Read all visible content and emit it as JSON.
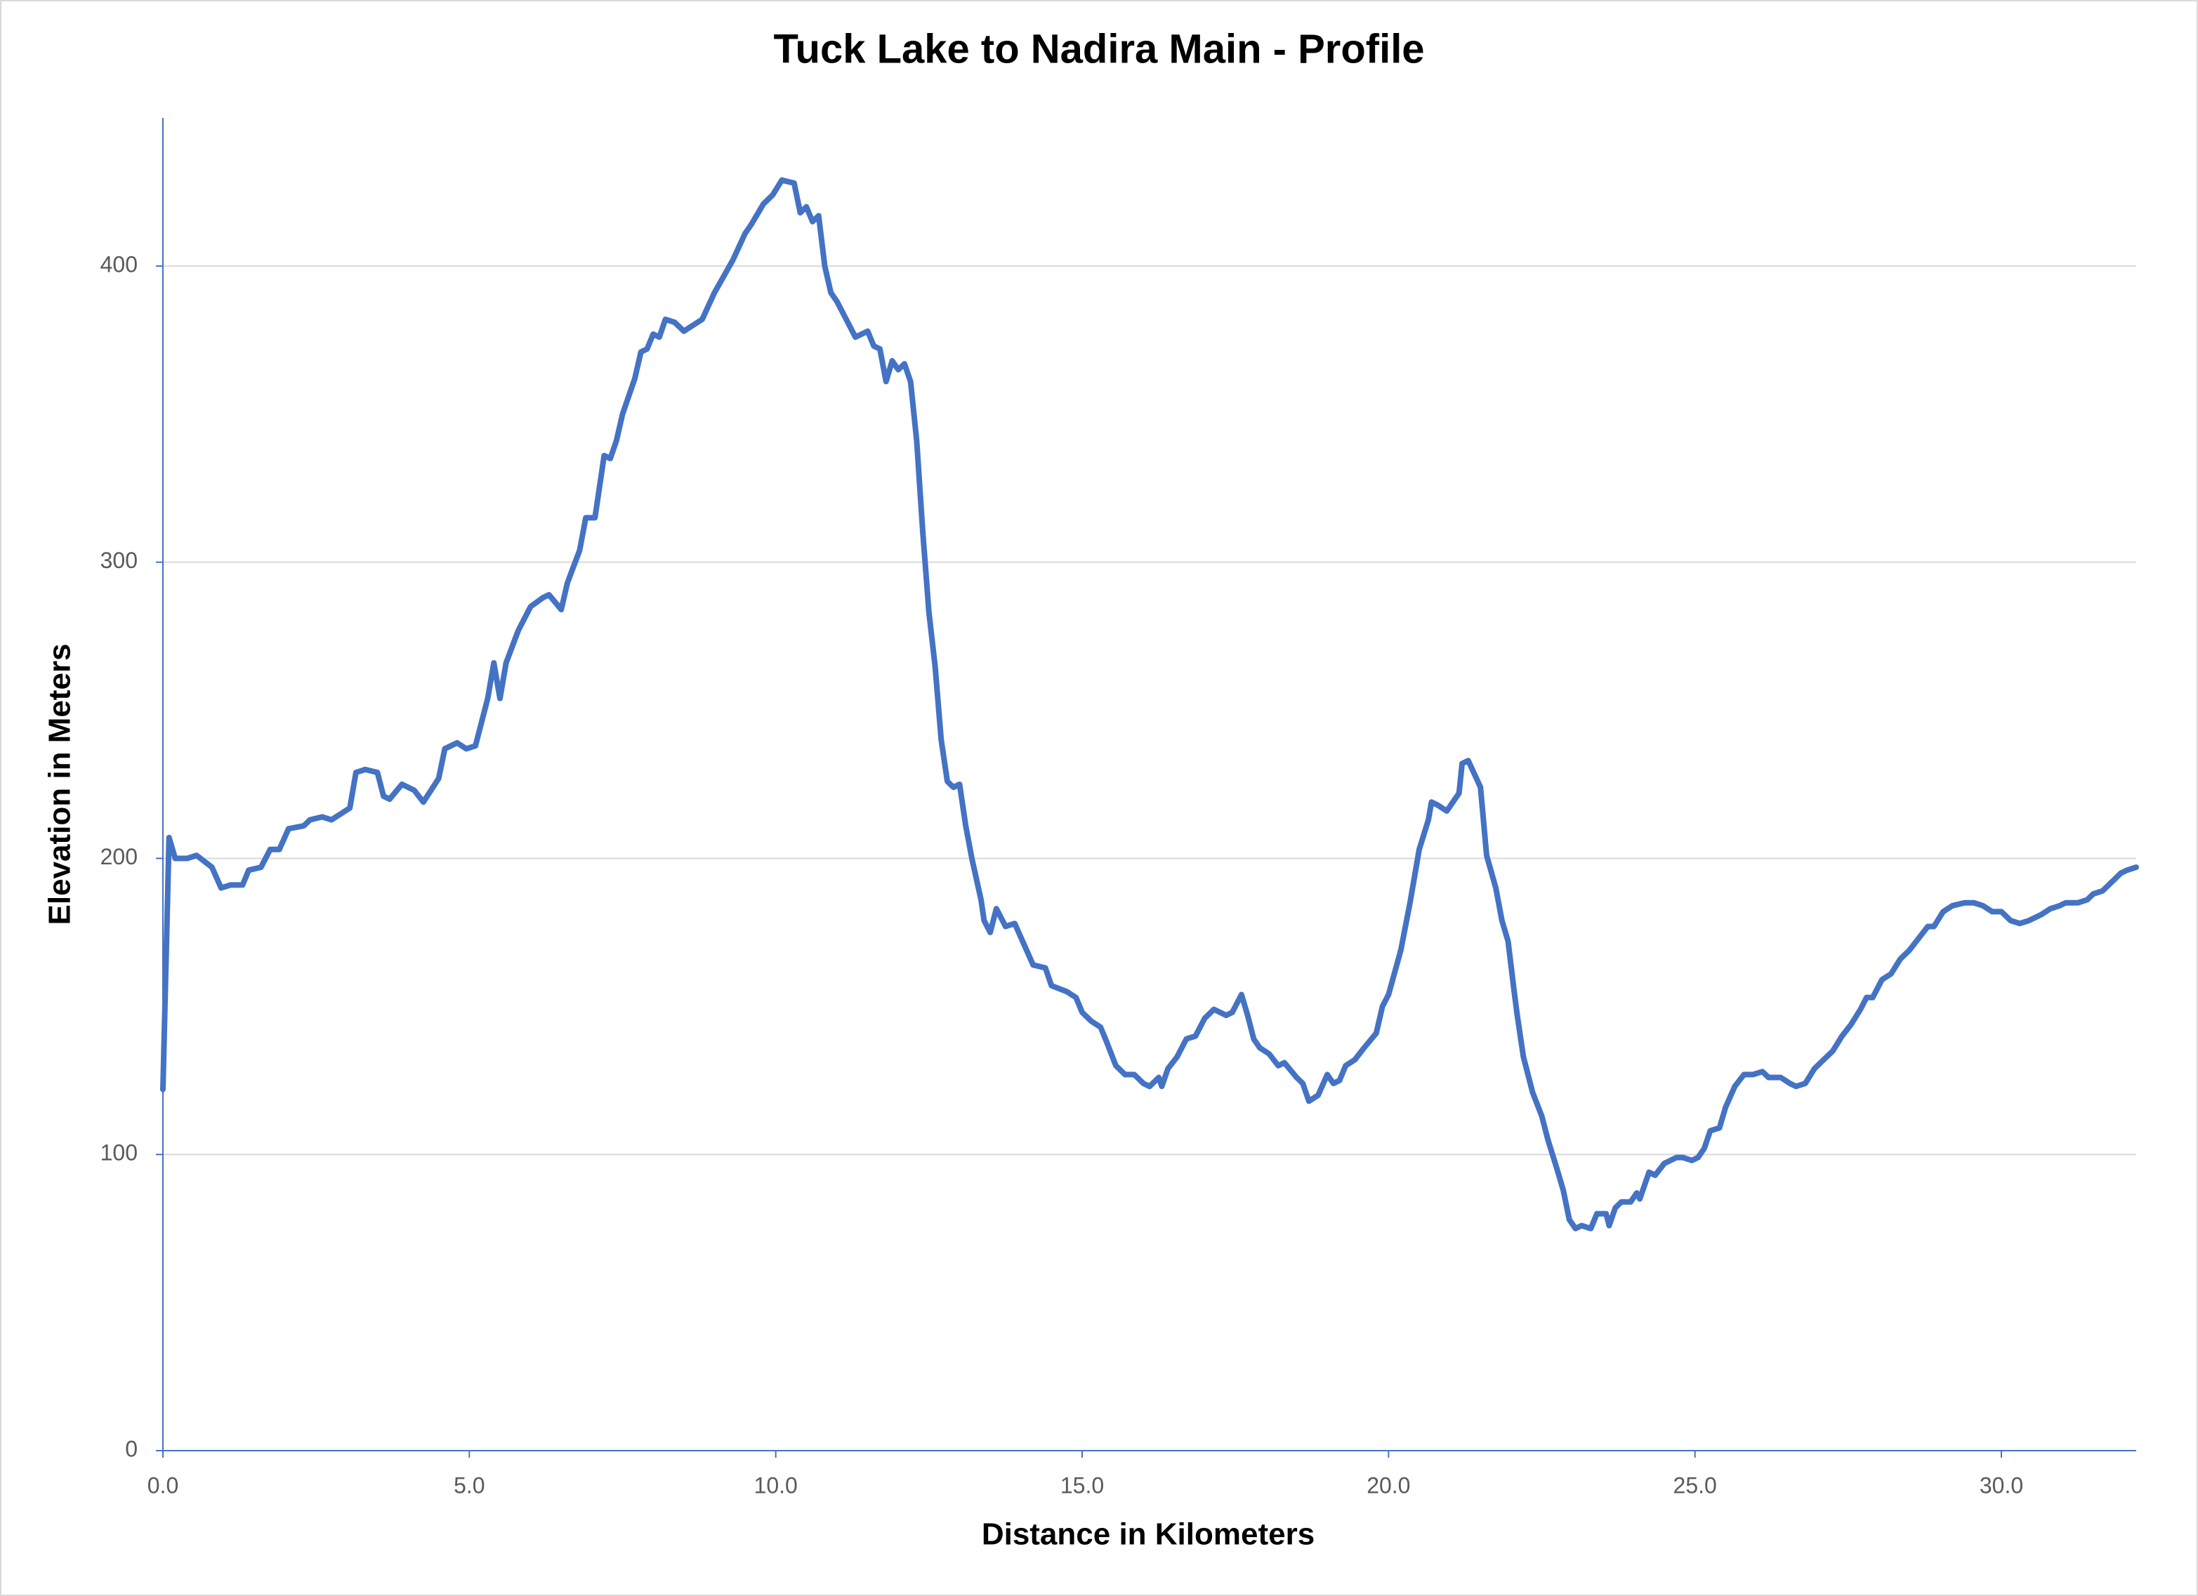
{
  "chart_data": {
    "type": "line",
    "title": "Tuck Lake to Nadira Main - Profile",
    "x_label": "Distance in Kilometers",
    "y_label": "Elevation in Meters",
    "color": "#4472c4",
    "grid": true,
    "xlim": [
      0,
      32.2
    ],
    "ylim": [
      0,
      450
    ],
    "xticks": [
      {
        "value": 0,
        "label": "0.0"
      },
      {
        "value": 5,
        "label": "5.0"
      },
      {
        "value": 10,
        "label": "10.0"
      },
      {
        "value": 15,
        "label": "15.0"
      },
      {
        "value": 20,
        "label": "20.0"
      },
      {
        "value": 25,
        "label": "25.0"
      },
      {
        "value": 30,
        "label": "30.0"
      }
    ],
    "yticks": [
      0,
      100,
      200,
      300,
      400
    ],
    "x": [
      0,
      0.1,
      0.2,
      0.4,
      0.55,
      0.8,
      0.95,
      1.1,
      1.3,
      1.4,
      1.6,
      1.75,
      1.9,
      2.05,
      2.3,
      2.4,
      2.6,
      2.75,
      2.9,
      3.05,
      3.15,
      3.3,
      3.5,
      3.6,
      3.7,
      3.9,
      4.1,
      4.25,
      4.5,
      4.6,
      4.8,
      4.95,
      5.1,
      5.3,
      5.4,
      5.5,
      5.6,
      5.8,
      6.0,
      6.2,
      6.3,
      6.5,
      6.6,
      6.8,
      6.9,
      7.05,
      7.2,
      7.3,
      7.4,
      7.5,
      7.7,
      7.8,
      7.9,
      8.0,
      8.1,
      8.2,
      8.35,
      8.5,
      8.8,
      9.0,
      9.3,
      9.5,
      9.6,
      9.8,
      9.95,
      10.1,
      10.3,
      10.4,
      10.5,
      10.6,
      10.7,
      10.8,
      10.9,
      11.0,
      11.15,
      11.3,
      11.5,
      11.6,
      11.7,
      11.8,
      11.9,
      12.0,
      12.1,
      12.2,
      12.3,
      12.4,
      12.5,
      12.6,
      12.7,
      12.8,
      12.9,
      13.0,
      13.1,
      13.2,
      13.35,
      13.4,
      13.5,
      13.6,
      13.75,
      13.9,
      14.05,
      14.2,
      14.4,
      14.5,
      14.75,
      14.9,
      15.0,
      15.15,
      15.3,
      15.4,
      15.55,
      15.7,
      15.85,
      16.0,
      16.1,
      16.25,
      16.3,
      16.4,
      16.55,
      16.7,
      16.85,
      17.0,
      17.15,
      17.35,
      17.45,
      17.6,
      17.7,
      17.8,
      17.9,
      18.05,
      18.2,
      18.3,
      18.5,
      18.6,
      18.7,
      18.85,
      19.0,
      19.1,
      19.2,
      19.3,
      19.45,
      19.6,
      19.8,
      19.9,
      20.0,
      20.2,
      20.35,
      20.5,
      20.65,
      20.7,
      20.8,
      20.95,
      21.05,
      21.15,
      21.2,
      21.3,
      21.5,
      21.6,
      21.75,
      21.85,
      21.95,
      22.05,
      22.1,
      22.2,
      22.35,
      22.5,
      22.6,
      22.75,
      22.85,
      22.95,
      23.05,
      23.15,
      23.3,
      23.4,
      23.55,
      23.6,
      23.7,
      23.8,
      23.95,
      24.05,
      24.1,
      24.25,
      24.35,
      24.5,
      24.7,
      24.8,
      24.95,
      25.05,
      25.15,
      25.25,
      25.4,
      25.5,
      25.65,
      25.8,
      25.95,
      26.1,
      26.2,
      26.4,
      26.55,
      26.65,
      26.8,
      26.95,
      27.1,
      27.25,
      27.4,
      27.55,
      27.7,
      27.8,
      27.9,
      28.05,
      28.2,
      28.35,
      28.5,
      28.65,
      28.8,
      28.9,
      29.05,
      29.2,
      29.4,
      29.55,
      29.7,
      29.85,
      30.0,
      30.15,
      30.3,
      30.45,
      30.65,
      30.8,
      30.95,
      31.05,
      31.25,
      31.4,
      31.5,
      31.65,
      31.8,
      31.95,
      32.05,
      32.2
    ],
    "values": [
      122,
      207,
      200,
      200,
      201,
      197,
      190,
      191,
      191,
      196,
      197,
      203,
      203,
      210,
      211,
      213,
      214,
      213,
      215,
      217,
      229,
      230,
      229,
      221,
      220,
      225,
      223,
      219,
      227,
      237,
      239,
      237,
      238,
      254,
      266,
      254,
      266,
      277,
      285,
      288,
      289,
      284,
      293,
      304,
      315,
      315,
      336,
      335,
      341,
      350,
      362,
      371,
      372,
      377,
      376,
      382,
      381,
      378,
      382,
      391,
      402,
      411,
      414,
      421,
      424,
      429,
      428,
      418,
      420,
      415,
      417,
      400,
      391,
      388,
      382,
      376,
      378,
      373,
      372,
      361,
      368,
      365,
      367,
      361,
      341,
      310,
      283,
      265,
      240,
      226,
      224,
      225,
      211,
      200,
      186,
      179,
      175,
      183,
      177,
      178,
      171,
      164,
      163,
      157,
      155,
      153,
      148,
      145,
      143,
      138,
      130,
      127,
      127,
      124,
      123,
      126,
      123,
      129,
      133,
      139,
      140,
      146,
      149,
      147,
      148,
      154,
      147,
      139,
      136,
      134,
      130,
      131,
      126,
      124,
      118,
      120,
      127,
      124,
      125,
      130,
      132,
      136,
      141,
      150,
      154,
      169,
      185,
      203,
      213,
      219,
      218,
      216,
      219,
      222,
      232,
      233,
      224,
      201,
      190,
      179,
      172,
      155,
      147,
      133,
      121,
      113,
      105,
      95,
      88,
      78,
      75,
      76,
      75,
      80,
      80,
      76,
      82,
      84,
      84,
      87,
      85,
      94,
      93,
      97,
      99,
      99,
      98,
      99,
      102,
      108,
      109,
      116,
      123,
      127,
      127,
      128,
      126,
      126,
      124,
      123,
      124,
      129,
      132,
      135,
      140,
      144,
      149,
      153,
      153,
      159,
      161,
      166,
      169,
      173,
      177,
      177,
      182,
      184,
      185,
      185,
      184,
      182,
      182,
      179,
      178,
      179,
      181,
      183,
      184,
      185,
      185,
      186,
      188,
      189,
      192,
      195,
      196,
      197
    ]
  }
}
